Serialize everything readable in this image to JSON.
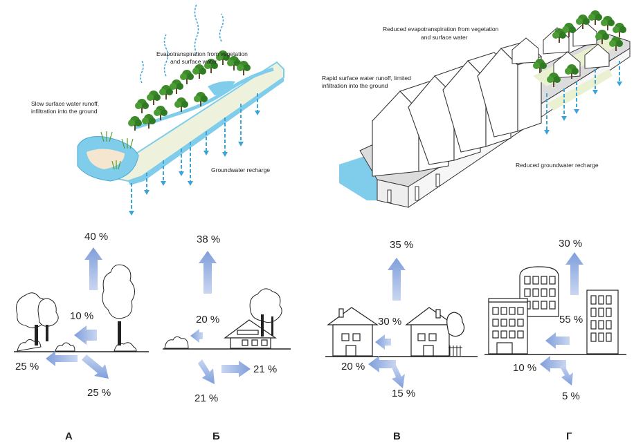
{
  "top_left": {
    "label_evap_line1": "Evapotranspiration from vegetation",
    "label_evap_line2": "and surface water",
    "label_runoff_line1": "Slow surface water runoff,",
    "label_runoff_line2": "infiltration into the ground",
    "label_recharge": "Groundwater recharge"
  },
  "top_right": {
    "label_evap_line1": "Reduced evapotranspiration from vegetation",
    "label_evap_line2": "and surface water",
    "label_runoff_line1": "Rapid surface water runoff, limited",
    "label_runoff_line2": "infiltration into the ground",
    "label_recharge": "Reduced groundwater recharge"
  },
  "panels": [
    {
      "letter": "А",
      "evap": "40 %",
      "runoff": "10 %",
      "shallow": "25 %",
      "deep": "25 %"
    },
    {
      "letter": "Б",
      "evap": "38 %",
      "runoff": "20 %",
      "shallow": "21 %",
      "deep": "21 %"
    },
    {
      "letter": "В",
      "evap": "35 %",
      "runoff": "30 %",
      "shallow": "20 %",
      "deep": "15 %"
    },
    {
      "letter": "Г",
      "evap": "30 %",
      "runoff": "55 %",
      "shallow": "10 %",
      "deep": "5 %"
    }
  ],
  "colors": {
    "water": "#7fcdea",
    "arrow": "#8aa6dc",
    "drip": "#3aa3d8",
    "tree": "#3c8a2a",
    "ground": "#e9efd2",
    "line": "#222222"
  }
}
